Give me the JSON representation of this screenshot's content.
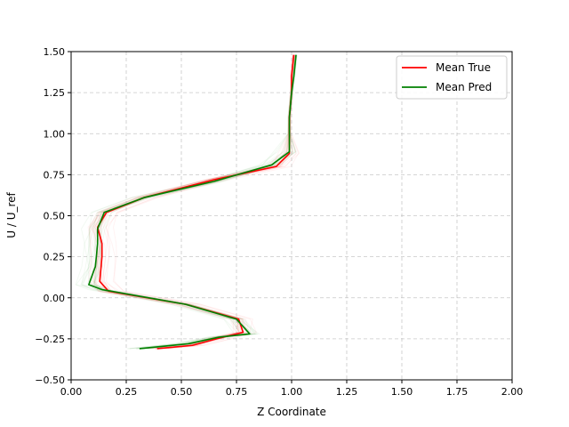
{
  "chart_data": {
    "type": "line",
    "title": "",
    "xlabel": "Z Coordinate",
    "ylabel": "U / U_ref",
    "xlim": [
      0.0,
      2.0
    ],
    "ylim": [
      -0.5,
      1.5
    ],
    "xticks": [
      "0.00",
      "0.25",
      "0.50",
      "0.75",
      "1.00",
      "1.25",
      "1.50",
      "1.75",
      "2.00"
    ],
    "yticks": [
      "−0.50",
      "−0.25",
      "0.00",
      "0.25",
      "0.50",
      "0.75",
      "1.00",
      "1.25",
      "1.50"
    ],
    "grid": true,
    "legend": "top-right",
    "series": [
      {
        "name": "Mean True",
        "color": "#ff0000",
        "points": [
          [
            0.39,
            -0.31
          ],
          [
            0.55,
            -0.29
          ],
          [
            0.66,
            -0.25
          ],
          [
            0.78,
            -0.21
          ],
          [
            0.76,
            -0.13
          ],
          [
            0.52,
            -0.04
          ],
          [
            0.17,
            0.04
          ],
          [
            0.13,
            0.1
          ],
          [
            0.14,
            0.25
          ],
          [
            0.14,
            0.33
          ],
          [
            0.12,
            0.43
          ],
          [
            0.16,
            0.52
          ],
          [
            0.33,
            0.61
          ],
          [
            0.65,
            0.72
          ],
          [
            0.93,
            0.8
          ],
          [
            0.99,
            0.88
          ],
          [
            0.99,
            1.0
          ],
          [
            0.99,
            1.1
          ],
          [
            1.0,
            1.25
          ],
          [
            1.0,
            1.35
          ],
          [
            1.01,
            1.48
          ]
        ]
      },
      {
        "name": "Mean Pred",
        "color": "#008000",
        "points": [
          [
            0.31,
            -0.31
          ],
          [
            0.53,
            -0.28
          ],
          [
            0.67,
            -0.24
          ],
          [
            0.81,
            -0.22
          ],
          [
            0.75,
            -0.13
          ],
          [
            0.52,
            -0.04
          ],
          [
            0.14,
            0.05
          ],
          [
            0.08,
            0.08
          ],
          [
            0.11,
            0.19
          ],
          [
            0.12,
            0.33
          ],
          [
            0.12,
            0.42
          ],
          [
            0.15,
            0.52
          ],
          [
            0.33,
            0.61
          ],
          [
            0.65,
            0.71
          ],
          [
            0.91,
            0.81
          ],
          [
            0.99,
            0.89
          ],
          [
            0.99,
            1.0
          ],
          [
            0.99,
            1.1
          ],
          [
            1.0,
            1.25
          ],
          [
            1.01,
            1.35
          ],
          [
            1.02,
            1.48
          ]
        ]
      }
    ]
  }
}
